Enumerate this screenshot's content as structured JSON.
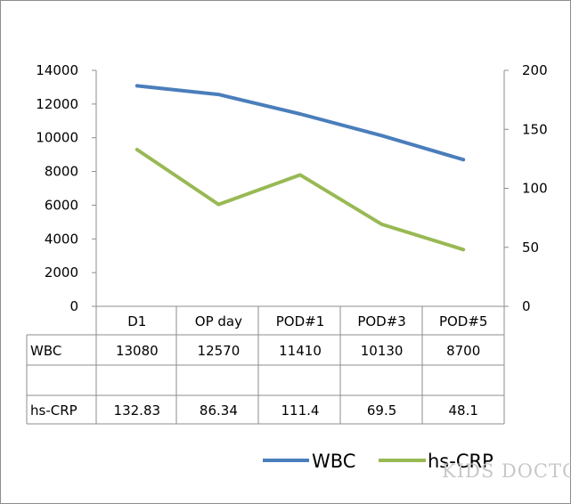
{
  "chart_data": {
    "type": "line",
    "categories": [
      "D1",
      "OP day",
      "POD#1",
      "POD#3",
      "POD#5"
    ],
    "series": [
      {
        "name": "WBC",
        "axis": "left",
        "color": "#4a7ebb",
        "values": [
          13080,
          12570,
          11410,
          10130,
          8700
        ]
      },
      {
        "name": "hs-CRP",
        "axis": "right",
        "color": "#98b954",
        "values": [
          132.83,
          86.34,
          111.4,
          69.5,
          48.1
        ]
      }
    ],
    "table_rows": [
      {
        "label": "WBC",
        "cells": [
          "13080",
          "12570",
          "11410",
          "10130",
          "8700"
        ]
      },
      {
        "label": "",
        "cells": [
          "",
          "",
          "",
          "",
          ""
        ]
      },
      {
        "label": "hs-CRP",
        "cells": [
          "132.83",
          "86.34",
          "111.4",
          "69.5",
          "48.1"
        ]
      }
    ],
    "y_left": {
      "lim": [
        0,
        14000
      ],
      "ticks": [
        "0",
        "2000",
        "4000",
        "6000",
        "8000",
        "10000",
        "12000",
        "14000"
      ]
    },
    "y_right": {
      "lim": [
        0,
        200
      ],
      "ticks": [
        "0",
        "50",
        "100",
        "150",
        "200"
      ]
    },
    "legend": {
      "position": "bottom-right",
      "entries": [
        "WBC",
        "hs-CRP"
      ]
    },
    "grid": false
  },
  "watermark": "KIDS DOCTOR"
}
